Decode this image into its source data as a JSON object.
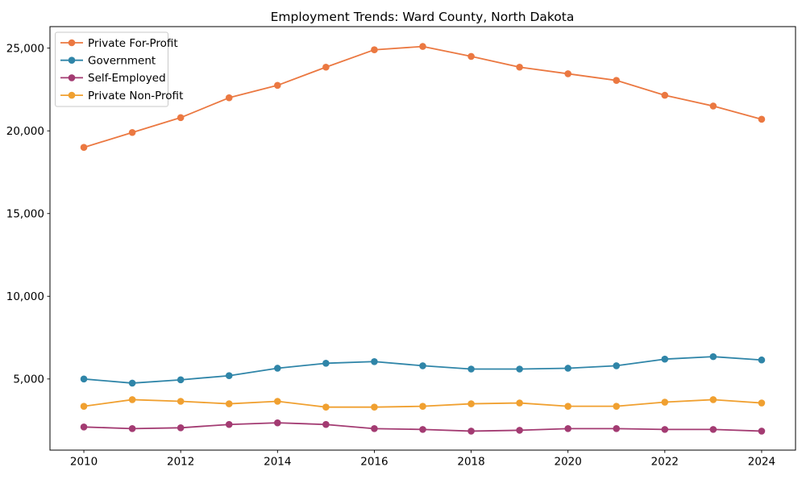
{
  "figure": {
    "background": "#ffffff",
    "axis_color": "#000000",
    "legend_border_color": "#c9c9c9",
    "legend_background": "#ffffff"
  },
  "chart_data": {
    "type": "line",
    "title": "Employment Trends: Ward County, North Dakota",
    "xlabel": "",
    "ylabel": "",
    "grid": false,
    "legend_position": "upper left",
    "x": [
      2010,
      2011,
      2012,
      2013,
      2014,
      2015,
      2016,
      2017,
      2018,
      2019,
      2020,
      2021,
      2022,
      2023,
      2024
    ],
    "xlim": [
      2009.3,
      2024.7
    ],
    "ylim": [
      700,
      26300
    ],
    "xtick_values": [
      2010,
      2012,
      2014,
      2016,
      2018,
      2020,
      2022,
      2024
    ],
    "xtick_labels": [
      "2010",
      "2012",
      "2014",
      "2016",
      "2018",
      "2020",
      "2022",
      "2024"
    ],
    "ytick_values": [
      5000,
      10000,
      15000,
      20000,
      25000
    ],
    "ytick_labels": [
      "5,000",
      "10,000",
      "15,000",
      "20,000",
      "25,000"
    ],
    "series": [
      {
        "name": "Private For-Profit",
        "color": "#EB7841",
        "values": [
          19000,
          19900,
          20800,
          22000,
          22750,
          23850,
          24900,
          25100,
          24500,
          23850,
          23450,
          23050,
          22150,
          21500,
          20700
        ]
      },
      {
        "name": "Government",
        "color": "#2F85A8",
        "values": [
          5000,
          4750,
          4950,
          5200,
          5650,
          5950,
          6050,
          5800,
          5600,
          5600,
          5650,
          5800,
          6200,
          6350,
          6150
        ]
      },
      {
        "name": "Self-Employed",
        "color": "#A33B72",
        "values": [
          2100,
          2000,
          2050,
          2250,
          2350,
          2250,
          2000,
          1950,
          1850,
          1900,
          2000,
          2000,
          1950,
          1950,
          1850
        ]
      },
      {
        "name": "Private Non-Profit",
        "color": "#F0A030",
        "values": [
          3350,
          3750,
          3650,
          3500,
          3650,
          3300,
          3300,
          3350,
          3500,
          3550,
          3350,
          3350,
          3600,
          3750,
          3550
        ]
      }
    ]
  }
}
